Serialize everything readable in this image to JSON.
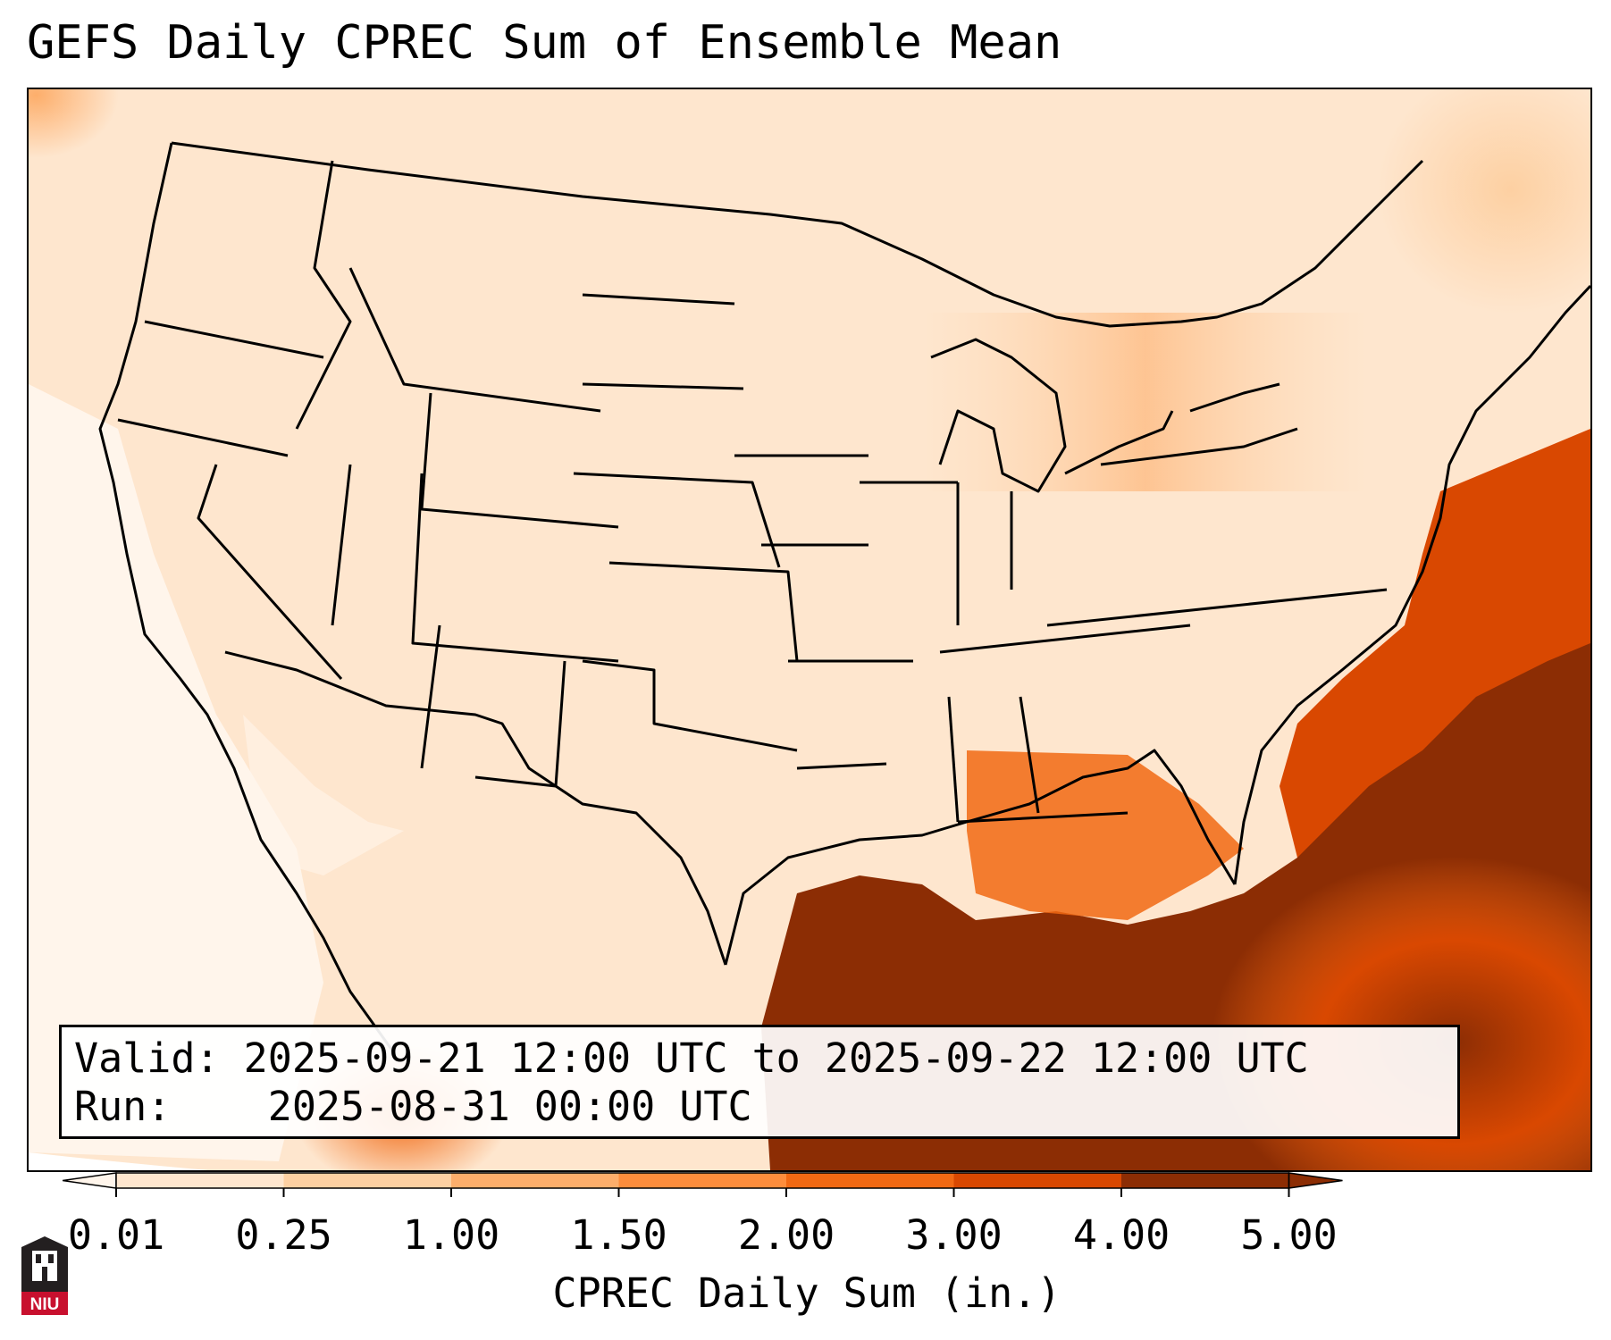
{
  "title": "GEFS Daily CPREC Sum of Ensemble Mean",
  "info": {
    "valid_label": "Valid:",
    "valid_value": "2025-09-21 12:00 UTC to 2025-09-22 12:00 UTC",
    "run_label": "Run:",
    "run_value": "2025-08-31 00:00 UTC"
  },
  "colorbar": {
    "label": "CPREC Daily Sum (in.)",
    "ticks": [
      "0.01",
      "0.25",
      "1.00",
      "1.50",
      "2.00",
      "3.00",
      "4.00",
      "5.00"
    ],
    "colors": [
      "#fff5eb",
      "#fee6ce",
      "#fdd0a2",
      "#fdae6b",
      "#fd8d3c",
      "#f16913",
      "#d94801",
      "#8c2d04"
    ]
  },
  "logo": {
    "text": "NIU",
    "color": "#c8102e"
  }
}
